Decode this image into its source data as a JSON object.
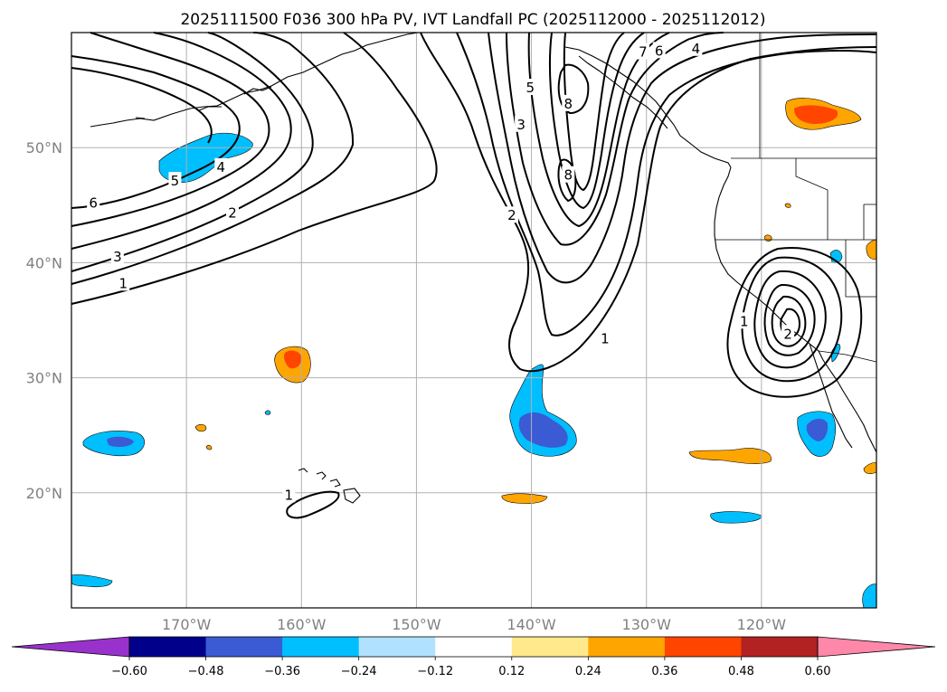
{
  "title": "2025111500 F036 300 hPa PV, IVT Landfall PC (2025112000 - 2025112012)",
  "map": {
    "projection": "PlateCarree",
    "lon_range": [
      -180,
      -110
    ],
    "lat_range": [
      10,
      60
    ],
    "lat_ticks": [
      {
        "value": 20,
        "label": "20°N"
      },
      {
        "value": 30,
        "label": "30°N"
      },
      {
        "value": 40,
        "label": "40°N"
      },
      {
        "value": 50,
        "label": "50°N"
      }
    ],
    "lon_ticks": [
      {
        "value": -170,
        "label": "170°W"
      },
      {
        "value": -160,
        "label": "160°W"
      },
      {
        "value": -150,
        "label": "150°W"
      },
      {
        "value": -140,
        "label": "140°W"
      },
      {
        "value": -130,
        "label": "130°W"
      },
      {
        "value": -120,
        "label": "120°W"
      }
    ],
    "contour_variable": "300 hPa PV",
    "fill_variable": "IVT Landfall PC"
  },
  "pv_contour_labels": [
    {
      "text": "6",
      "lon": -178.1,
      "lat": 45.2
    },
    {
      "text": "5",
      "lon": -171.0,
      "lat": 47.1
    },
    {
      "text": "4",
      "lon": -167.0,
      "lat": 48.3
    },
    {
      "text": "2",
      "lon": -166.0,
      "lat": 44.3
    },
    {
      "text": "3",
      "lon": -176.0,
      "lat": 40.5
    },
    {
      "text": "1",
      "lon": -175.5,
      "lat": 38.2
    },
    {
      "text": "5",
      "lon": -140.1,
      "lat": 55.2
    },
    {
      "text": "3",
      "lon": -140.9,
      "lat": 52.0
    },
    {
      "text": "2",
      "lon": -141.7,
      "lat": 44.1
    },
    {
      "text": "8",
      "lon": -136.8,
      "lat": 53.8
    },
    {
      "text": "8",
      "lon": -136.8,
      "lat": 47.6
    },
    {
      "text": "1",
      "lon": -133.6,
      "lat": 33.4
    },
    {
      "text": "7",
      "lon": -130.3,
      "lat": 58.3
    },
    {
      "text": "6",
      "lon": -128.9,
      "lat": 58.4
    },
    {
      "text": "4",
      "lon": -125.7,
      "lat": 58.6
    },
    {
      "text": "1",
      "lon": -121.5,
      "lat": 34.9
    },
    {
      "text": "2",
      "lon": -117.7,
      "lat": 33.8
    },
    {
      "text": "1",
      "lon": -161.1,
      "lat": 19.8
    }
  ],
  "colorbar": {
    "ticks": [
      "−0.60",
      "−0.48",
      "−0.36",
      "−0.24",
      "−0.12",
      "0.12",
      "0.24",
      "0.36",
      "0.48",
      "0.60"
    ],
    "colors": [
      "#9932cc",
      "#00008b",
      "#3a5bd4",
      "#00bfff",
      "#b0e2ff",
      "#ffffff",
      "#ffe98c",
      "#ffa500",
      "#ff4500",
      "#b22222",
      "#ff87aa"
    ],
    "extend": "both"
  },
  "colors": {
    "neg_light": "#00bfff",
    "neg_mid": "#3a5bd4",
    "pos_light": "#ffa500",
    "pos_mid": "#ff4500",
    "gridline": "#b0b0b0",
    "tick_label": "#808080"
  }
}
